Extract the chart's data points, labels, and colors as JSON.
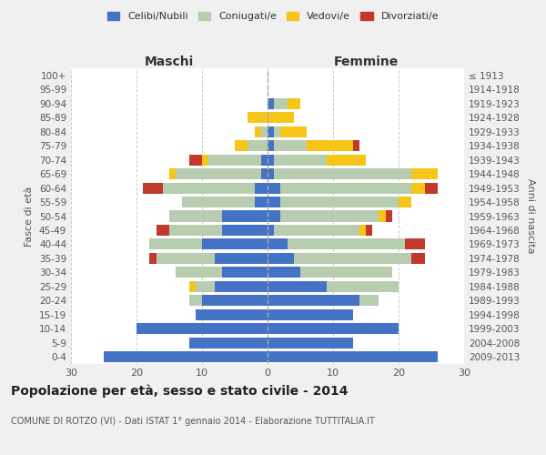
{
  "age_groups": [
    "0-4",
    "5-9",
    "10-14",
    "15-19",
    "20-24",
    "25-29",
    "30-34",
    "35-39",
    "40-44",
    "45-49",
    "50-54",
    "55-59",
    "60-64",
    "65-69",
    "70-74",
    "75-79",
    "80-84",
    "85-89",
    "90-94",
    "95-99",
    "100+"
  ],
  "birth_years": [
    "2009-2013",
    "2004-2008",
    "1999-2003",
    "1994-1998",
    "1989-1993",
    "1984-1988",
    "1979-1983",
    "1974-1978",
    "1969-1973",
    "1964-1968",
    "1959-1963",
    "1954-1958",
    "1949-1953",
    "1944-1948",
    "1939-1943",
    "1934-1938",
    "1929-1933",
    "1924-1928",
    "1919-1923",
    "1914-1918",
    "≤ 1913"
  ],
  "maschi": {
    "celibi": [
      25,
      12,
      20,
      11,
      10,
      8,
      7,
      8,
      10,
      7,
      7,
      2,
      2,
      1,
      1,
      0,
      0,
      0,
      0,
      0,
      0
    ],
    "coniugati": [
      0,
      0,
      0,
      0,
      2,
      3,
      7,
      9,
      8,
      8,
      8,
      11,
      14,
      13,
      8,
      3,
      1,
      0,
      0,
      0,
      0
    ],
    "vedovi": [
      0,
      0,
      0,
      0,
      0,
      1,
      0,
      0,
      0,
      0,
      0,
      0,
      0,
      1,
      1,
      2,
      1,
      3,
      0,
      0,
      0
    ],
    "divorziati": [
      0,
      0,
      0,
      0,
      0,
      0,
      0,
      1,
      0,
      2,
      0,
      0,
      3,
      0,
      2,
      0,
      0,
      0,
      0,
      0,
      0
    ]
  },
  "femmine": {
    "nubili": [
      26,
      13,
      20,
      13,
      14,
      9,
      5,
      4,
      3,
      1,
      2,
      2,
      2,
      1,
      1,
      1,
      1,
      0,
      1,
      0,
      0
    ],
    "coniugate": [
      0,
      0,
      0,
      0,
      3,
      11,
      14,
      18,
      18,
      13,
      15,
      18,
      20,
      21,
      8,
      5,
      1,
      0,
      2,
      0,
      0
    ],
    "vedove": [
      0,
      0,
      0,
      0,
      0,
      0,
      0,
      0,
      0,
      1,
      1,
      2,
      2,
      4,
      6,
      7,
      4,
      4,
      2,
      0,
      0
    ],
    "divorziate": [
      0,
      0,
      0,
      0,
      0,
      0,
      0,
      2,
      3,
      1,
      1,
      0,
      2,
      0,
      0,
      1,
      0,
      0,
      0,
      0,
      0
    ]
  },
  "colors": {
    "celibi_nubili": "#4472C4",
    "coniugati": "#B8CCB0",
    "vedovi": "#F5C518",
    "divorziati": "#C0392B"
  },
  "xlim": 30,
  "title": "Popolazione per età, sesso e stato civile - 2014",
  "subtitle": "COMUNE DI ROTZO (VI) - Dati ISTAT 1° gennaio 2014 - Elaborazione TUTTITALIA.IT",
  "xlabel_left": "Maschi",
  "xlabel_right": "Femmine",
  "ylabel_left": "Fasce di età",
  "ylabel_right": "Anni di nascita",
  "background_color": "#f0f0f0",
  "bar_background": "#ffffff"
}
